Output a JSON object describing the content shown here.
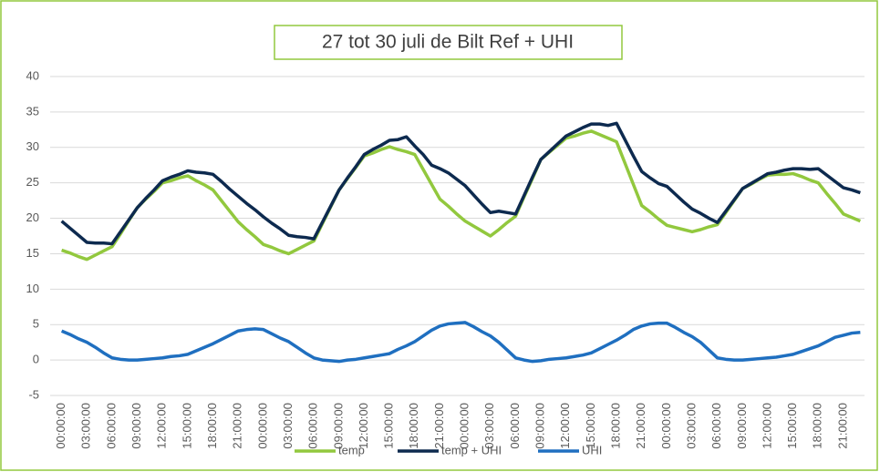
{
  "chart_data": {
    "type": "line",
    "title": "27 tot 30 juli  de Bilt Ref + UHI",
    "categories": [
      "00:00:00",
      null,
      null,
      "03:00:00",
      null,
      null,
      "06:00:00",
      null,
      null,
      "09:00:00",
      null,
      null,
      "12:00:00",
      null,
      null,
      "15:00:00",
      null,
      null,
      "18:00:00",
      null,
      null,
      "21:00:00",
      null,
      null,
      "00:00:00",
      null,
      null,
      "03:00:00",
      null,
      null,
      "06:00:00",
      null,
      null,
      "09:00:00",
      null,
      null,
      "12:00:00",
      null,
      null,
      "15:00:00",
      null,
      null,
      "18:00:00",
      null,
      null,
      "21:00:00",
      null,
      null,
      "00:00:00",
      null,
      null,
      "03:00:00",
      null,
      null,
      "06:00:00",
      null,
      null,
      "09:00:00",
      null,
      null,
      "12:00:00",
      null,
      null,
      "15:00:00",
      null,
      null,
      "18:00:00",
      null,
      null,
      "21:00:00",
      null,
      null,
      "00:00:00",
      null,
      null,
      "03:00:00",
      null,
      null,
      "06:00:00",
      null,
      null,
      "09:00:00",
      null,
      null,
      "12:00:00",
      null,
      null,
      "15:00:00",
      null,
      null,
      "18:00:00",
      null,
      null,
      "21:00:00",
      null,
      null
    ],
    "series": [
      {
        "name": "temp",
        "color": "#92c83e",
        "values": [
          15.5,
          15.1,
          14.6,
          14.2,
          14.8,
          15.4,
          16,
          17.8,
          19.7,
          21.5,
          22.7,
          23.8,
          25,
          25.3,
          25.7,
          26,
          25.3,
          24.7,
          24,
          22.5,
          21,
          19.5,
          18.4,
          17.4,
          16.3,
          15.9,
          15.4,
          15,
          15.6,
          16.2,
          16.8,
          19.2,
          21.6,
          24,
          25.6,
          27.2,
          28.8,
          29.2,
          29.7,
          30.1,
          29.7,
          29.4,
          29,
          26.9,
          24.8,
          22.7,
          21.7,
          20.6,
          19.6,
          18.9,
          18.2,
          17.5,
          18.4,
          19.4,
          20.3,
          23,
          25.6,
          28.3,
          29.3,
          30.3,
          31.3,
          31.6,
          32,
          32.3,
          31.8,
          31.3,
          30.8,
          27.8,
          24.8,
          21.8,
          20.9,
          19.9,
          19,
          18.7,
          18.4,
          18.1,
          18.4,
          18.8,
          19.1,
          20.8,
          22.5,
          24.2,
          24.8,
          25.5,
          26.1,
          26.2,
          26.2,
          26.3,
          25.9,
          25.4,
          25,
          23.5,
          22.1,
          20.6,
          20.1,
          19.6
        ]
      },
      {
        "name": "temp + UHI",
        "color": "#0d2a4f",
        "values": [
          19.6,
          18.6,
          17.6,
          16.6,
          16.5,
          16.5,
          16.4,
          18.1,
          19.8,
          21.5,
          22.8,
          24,
          25.3,
          25.8,
          26.2,
          26.7,
          26.5,
          26.4,
          26.2,
          25.2,
          24.1,
          23.1,
          22.1,
          21.2,
          20.2,
          19.3,
          18.5,
          17.6,
          17.4,
          17.3,
          17.1,
          19.4,
          21.7,
          24,
          25.7,
          27.3,
          29,
          29.7,
          30.3,
          31,
          31.1,
          31.5,
          30.2,
          29,
          27.5,
          27,
          26.4,
          25.5,
          24.6,
          23.3,
          22,
          20.8,
          21,
          20.8,
          20.6,
          23.2,
          25.8,
          28.3,
          29.4,
          30.5,
          31.6,
          32.2,
          32.8,
          33.3,
          33.3,
          33.1,
          33.4,
          31.1,
          28.8,
          26.6,
          25.7,
          24.9,
          24.5,
          23.4,
          22.3,
          21.3,
          20.7,
          20,
          19.4,
          21,
          22.6,
          24.2,
          24.9,
          25.6,
          26.3,
          26.5,
          26.8,
          27,
          27,
          26.9,
          27,
          26.1,
          25.2,
          24.3,
          24,
          23.6
        ]
      },
      {
        "name": "UHI",
        "color": "#1f6fc0",
        "values": [
          4.1,
          3.6,
          3,
          2.5,
          1.8,
          1,
          0.3,
          0.1,
          0,
          0,
          0.1,
          0.2,
          0.3,
          0.5,
          0.6,
          0.8,
          1.3,
          1.8,
          2.3,
          2.9,
          3.5,
          4.1,
          4.3,
          4.4,
          4.3,
          3.7,
          3.1,
          2.6,
          1.8,
          1,
          0.3,
          0,
          -0.1,
          -0.2,
          0,
          0.1,
          0.3,
          0.5,
          0.7,
          0.9,
          1.5,
          2,
          2.6,
          3.4,
          4.2,
          4.8,
          5.1,
          5.2,
          5.3,
          4.7,
          4,
          3.4,
          2.5,
          1.4,
          0.3,
          0,
          -0.2,
          -0.1,
          0.1,
          0.2,
          0.3,
          0.5,
          0.7,
          1,
          1.6,
          2.2,
          2.8,
          3.5,
          4.3,
          4.8,
          5.1,
          5.2,
          5.2,
          4.6,
          3.9,
          3.3,
          2.5,
          1.4,
          0.3,
          0.1,
          0,
          0,
          0.1,
          0.2,
          0.3,
          0.4,
          0.6,
          0.8,
          1.2,
          1.6,
          2,
          2.6,
          3.2,
          3.5,
          3.8,
          3.9
        ]
      }
    ],
    "ylim": [
      -5,
      40
    ],
    "yticks": [
      -5,
      0,
      5,
      10,
      15,
      20,
      25,
      30,
      35,
      40
    ],
    "grid": true,
    "legend": "bottom"
  }
}
